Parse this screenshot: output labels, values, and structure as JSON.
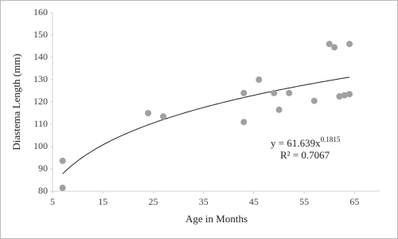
{
  "chart_data": {
    "type": "scatter",
    "xlabel": "Age in Months",
    "ylabel": "Diastema Length (mm)",
    "x": [
      7,
      7,
      24,
      27,
      43,
      43,
      46,
      49,
      50,
      52,
      57,
      60,
      61,
      62,
      63,
      64,
      64
    ],
    "values": [
      93.6,
      81.5,
      115,
      113.5,
      124,
      111,
      130,
      124,
      116.5,
      124,
      120.5,
      146,
      144.5,
      122.5,
      123,
      123.5,
      146
    ],
    "color": "#a0a0a0",
    "xlim": [
      5,
      70
    ],
    "xticks": [
      5,
      15,
      25,
      35,
      45,
      55,
      65
    ],
    "ylim": [
      80,
      160
    ],
    "yticks": [
      80,
      90,
      100,
      110,
      120,
      130,
      140,
      150,
      160
    ],
    "grid": false,
    "trendline": {
      "type": "power",
      "a": 61.639,
      "b": 0.1815,
      "color": "#222222",
      "equation": "y = 61.639x",
      "exponent": "0.1815",
      "r2": "R² = 0.7067"
    }
  }
}
